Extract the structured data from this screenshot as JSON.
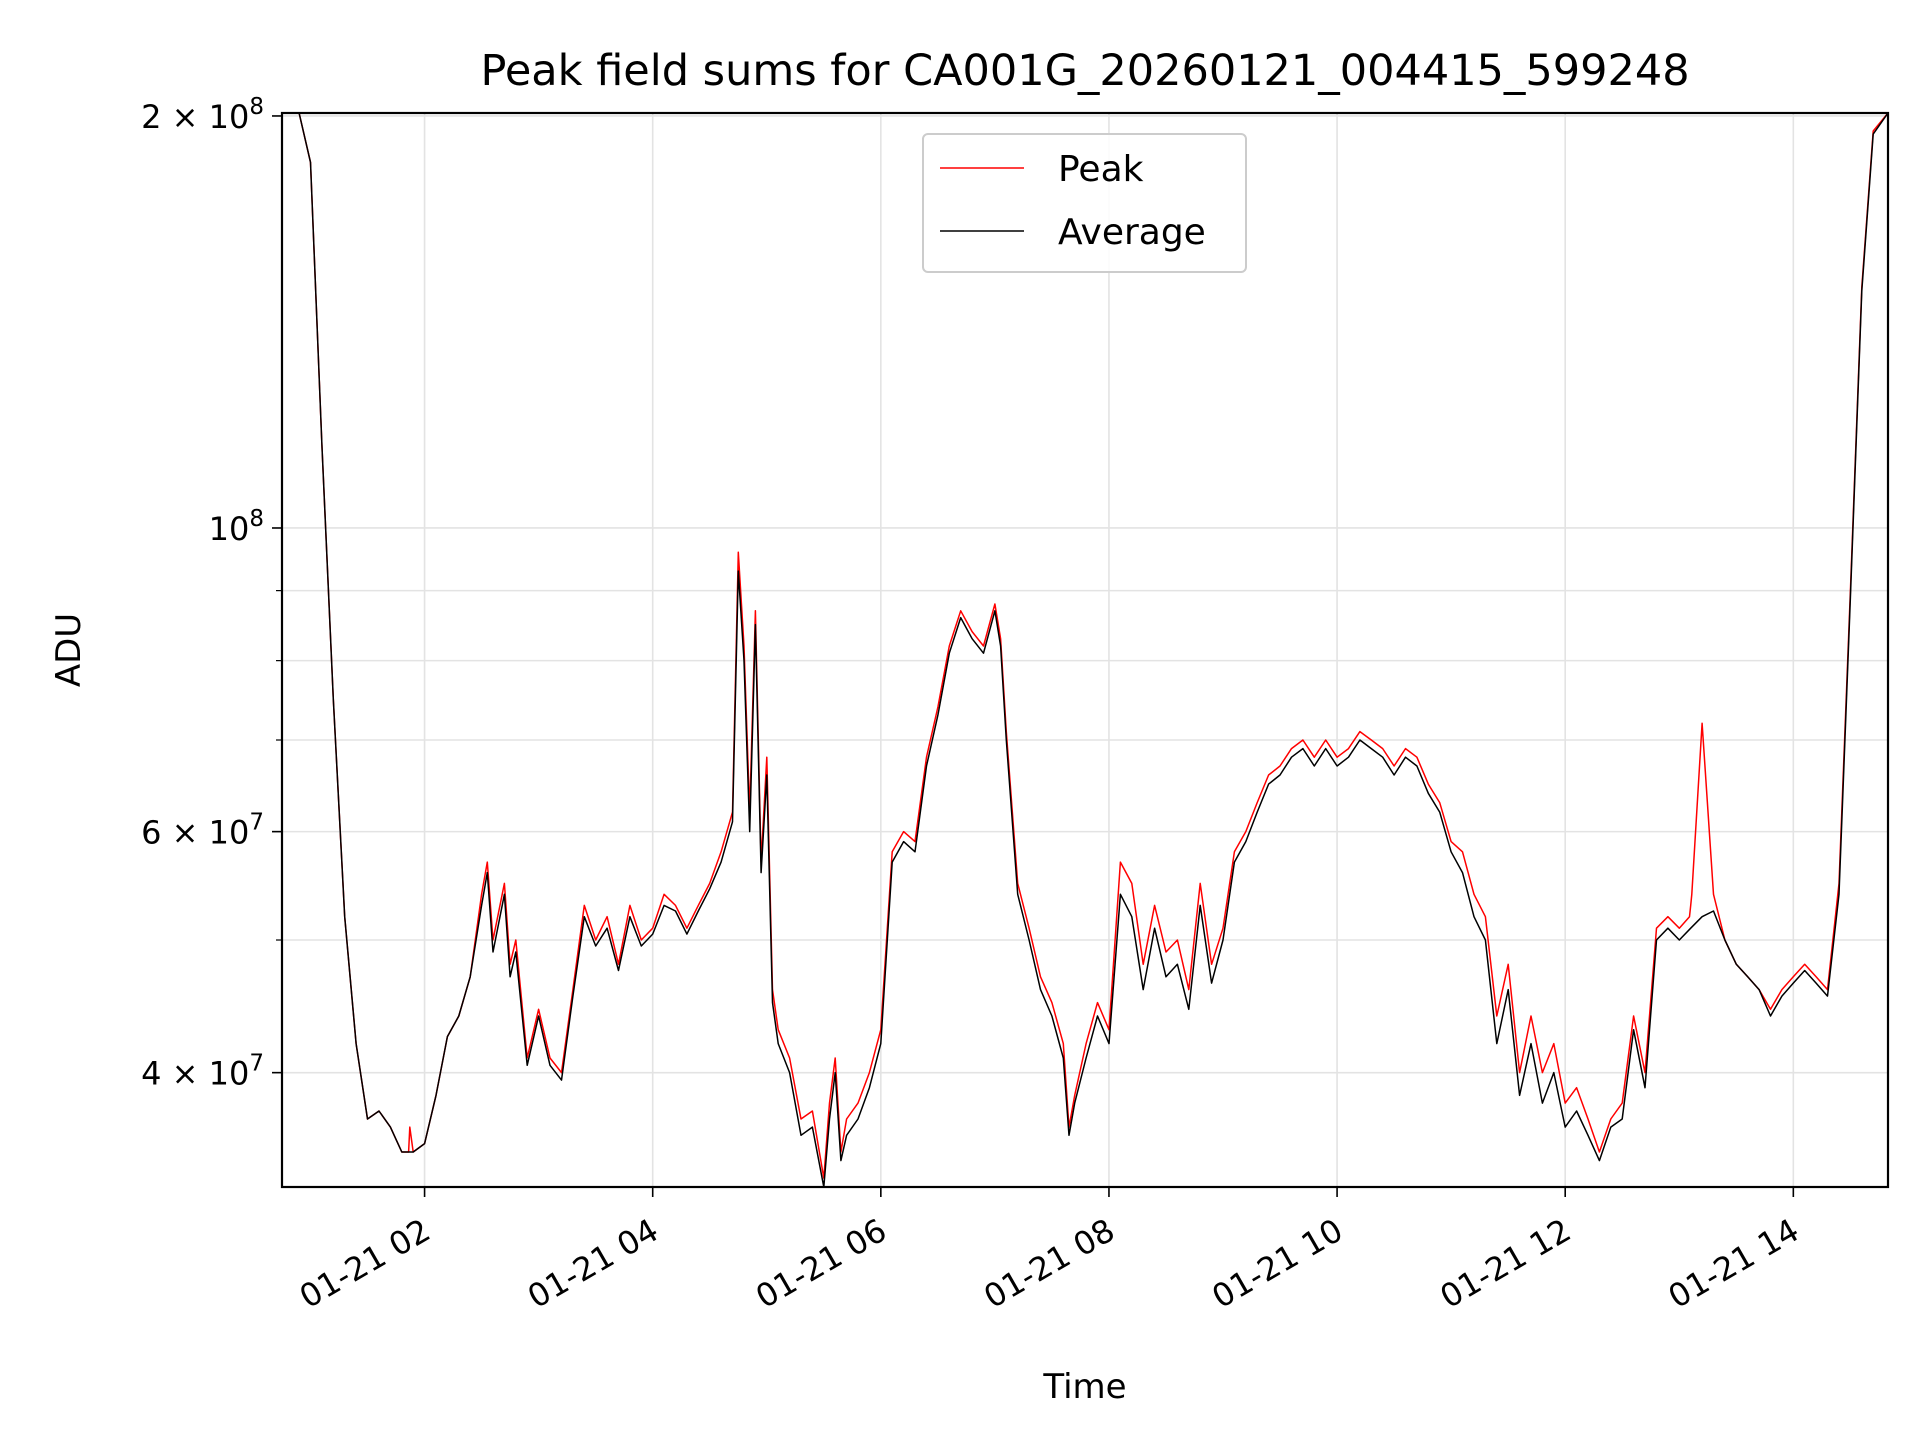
{
  "chart_data": {
    "type": "line",
    "title": "Peak field sums for CA001G_20260121_004415_599248",
    "xlabel": "Time",
    "ylabel": "ADU",
    "yscale": "log",
    "xlim_hours": [
      0.75,
      14.83
    ],
    "ylim": [
      33000000,
      201000000
    ],
    "grid": true,
    "legend_position": "upper-center",
    "x_ticks": [
      {
        "hour": 2,
        "label": "01-21 02"
      },
      {
        "hour": 4,
        "label": "01-21 04"
      },
      {
        "hour": 6,
        "label": "01-21 06"
      },
      {
        "hour": 8,
        "label": "01-21 08"
      },
      {
        "hour": 10,
        "label": "01-21 10"
      },
      {
        "hour": 12,
        "label": "01-21 12"
      },
      {
        "hour": 14,
        "label": "01-21 14"
      }
    ],
    "y_ticks": [
      {
        "value": 40000000,
        "base": "4 × 10",
        "exp": "7"
      },
      {
        "value": 60000000,
        "base": "6 × 10",
        "exp": "7"
      },
      {
        "value": 100000000,
        "base": "10",
        "exp": "8"
      },
      {
        "value": 200000000,
        "base": "2 × 10",
        "exp": "8"
      }
    ],
    "y_minor_ticks": [
      50000000,
      70000000,
      80000000,
      90000000
    ],
    "series": [
      {
        "name": "Peak",
        "color": "#ff0000",
        "x": [
          0.75,
          0.9,
          1.0,
          1.1,
          1.2,
          1.3,
          1.4,
          1.5,
          1.6,
          1.7,
          1.8,
          1.86,
          1.87,
          1.9,
          2.0,
          2.1,
          2.2,
          2.3,
          2.4,
          2.5,
          2.55,
          2.6,
          2.7,
          2.75,
          2.8,
          2.9,
          3.0,
          3.1,
          3.2,
          3.3,
          3.4,
          3.5,
          3.6,
          3.7,
          3.8,
          3.9,
          4.0,
          4.1,
          4.2,
          4.3,
          4.4,
          4.5,
          4.6,
          4.7,
          4.75,
          4.8,
          4.85,
          4.9,
          4.95,
          5.0,
          5.05,
          5.1,
          5.2,
          5.3,
          5.4,
          5.5,
          5.55,
          5.6,
          5.65,
          5.7,
          5.8,
          5.9,
          6.0,
          6.1,
          6.2,
          6.3,
          6.4,
          6.5,
          6.6,
          6.7,
          6.8,
          6.9,
          7.0,
          7.05,
          7.1,
          7.2,
          7.3,
          7.4,
          7.5,
          7.6,
          7.65,
          7.7,
          7.8,
          7.9,
          8.0,
          8.1,
          8.2,
          8.3,
          8.4,
          8.5,
          8.6,
          8.7,
          8.8,
          8.9,
          9.0,
          9.1,
          9.2,
          9.3,
          9.4,
          9.5,
          9.6,
          9.7,
          9.8,
          9.9,
          10.0,
          10.1,
          10.2,
          10.3,
          10.4,
          10.5,
          10.6,
          10.7,
          10.8,
          10.9,
          11.0,
          11.1,
          11.2,
          11.3,
          11.4,
          11.5,
          11.6,
          11.7,
          11.8,
          11.9,
          12.0,
          12.1,
          12.2,
          12.3,
          12.4,
          12.5,
          12.6,
          12.7,
          12.8,
          12.9,
          13.0,
          13.09,
          13.1,
          13.11,
          13.2,
          13.3,
          13.4,
          13.5,
          13.6,
          13.7,
          13.8,
          13.9,
          14.0,
          14.1,
          14.2,
          14.3,
          14.4,
          14.5,
          14.6,
          14.7,
          14.83
        ],
        "y": [
          201000000,
          201000000,
          185000000,
          115000000,
          75000000,
          52000000,
          42000000,
          37000000,
          37500000,
          36500000,
          35000000,
          35000000,
          36500000,
          35000000,
          35500000,
          38500000,
          42500000,
          44000000,
          47000000,
          54000000,
          57000000,
          50000000,
          55000000,
          48000000,
          50000000,
          41000000,
          44500000,
          41000000,
          40000000,
          46000000,
          53000000,
          50000000,
          52000000,
          48000000,
          53000000,
          50000000,
          51000000,
          54000000,
          53000000,
          51000000,
          53000000,
          55000000,
          58000000,
          62000000,
          96000000,
          82000000,
          62000000,
          87000000,
          57000000,
          68000000,
          46000000,
          43000000,
          41000000,
          37000000,
          37500000,
          33500000,
          38000000,
          41000000,
          35000000,
          37000000,
          38000000,
          40000000,
          43000000,
          58000000,
          60000000,
          59000000,
          68000000,
          74000000,
          82000000,
          87000000,
          84000000,
          82000000,
          88000000,
          83000000,
          71000000,
          55000000,
          51000000,
          47000000,
          45000000,
          42000000,
          36500000,
          38500000,
          42000000,
          45000000,
          43000000,
          57000000,
          55000000,
          48000000,
          53000000,
          49000000,
          50000000,
          46000000,
          55000000,
          48000000,
          51000000,
          58000000,
          60000000,
          63000000,
          66000000,
          67000000,
          69000000,
          70000000,
          68000000,
          70000000,
          68000000,
          69000000,
          71000000,
          70000000,
          69000000,
          67000000,
          69000000,
          68000000,
          65000000,
          63000000,
          59000000,
          58000000,
          54000000,
          52000000,
          44000000,
          48000000,
          40000000,
          44000000,
          40000000,
          42000000,
          38000000,
          39000000,
          37000000,
          35000000,
          37000000,
          38000000,
          44000000,
          40000000,
          51000000,
          52000000,
          51000000,
          52000000,
          53000000,
          54000000,
          72000000,
          54000000,
          50000000,
          48000000,
          47000000,
          46000000,
          44500000,
          46000000,
          47000000,
          48000000,
          47000000,
          46000000,
          55000000,
          90000000,
          150000000,
          195000000,
          201000000
        ]
      },
      {
        "name": "Average",
        "color": "#000000",
        "x": [
          0.75,
          0.9,
          1.0,
          1.1,
          1.2,
          1.3,
          1.4,
          1.5,
          1.6,
          1.7,
          1.8,
          1.9,
          2.0,
          2.1,
          2.2,
          2.3,
          2.4,
          2.5,
          2.55,
          2.6,
          2.7,
          2.75,
          2.8,
          2.9,
          3.0,
          3.1,
          3.2,
          3.3,
          3.4,
          3.5,
          3.6,
          3.7,
          3.8,
          3.9,
          4.0,
          4.1,
          4.2,
          4.3,
          4.4,
          4.5,
          4.6,
          4.7,
          4.75,
          4.8,
          4.85,
          4.9,
          4.95,
          5.0,
          5.05,
          5.1,
          5.2,
          5.3,
          5.4,
          5.5,
          5.55,
          5.6,
          5.65,
          5.7,
          5.8,
          5.9,
          6.0,
          6.1,
          6.2,
          6.3,
          6.4,
          6.5,
          6.6,
          6.7,
          6.8,
          6.9,
          7.0,
          7.05,
          7.1,
          7.2,
          7.3,
          7.4,
          7.5,
          7.6,
          7.65,
          7.7,
          7.8,
          7.9,
          8.0,
          8.1,
          8.2,
          8.3,
          8.4,
          8.5,
          8.6,
          8.7,
          8.8,
          8.9,
          9.0,
          9.1,
          9.2,
          9.3,
          9.4,
          9.5,
          9.6,
          9.7,
          9.8,
          9.9,
          10.0,
          10.1,
          10.2,
          10.3,
          10.4,
          10.5,
          10.6,
          10.7,
          10.8,
          10.9,
          11.0,
          11.1,
          11.2,
          11.3,
          11.4,
          11.5,
          11.6,
          11.7,
          11.8,
          11.9,
          12.0,
          12.1,
          12.2,
          12.3,
          12.4,
          12.5,
          12.6,
          12.7,
          12.8,
          12.9,
          13.0,
          13.1,
          13.2,
          13.3,
          13.4,
          13.5,
          13.6,
          13.7,
          13.8,
          13.9,
          14.0,
          14.1,
          14.2,
          14.3,
          14.4,
          14.5,
          14.6,
          14.7,
          14.83
        ],
        "y": [
          201000000,
          201000000,
          185000000,
          115000000,
          75000000,
          52000000,
          42000000,
          37000000,
          37500000,
          36500000,
          35000000,
          35000000,
          35500000,
          38500000,
          42500000,
          44000000,
          47000000,
          53000000,
          56000000,
          49000000,
          54000000,
          47000000,
          49000000,
          40500000,
          44000000,
          40500000,
          39500000,
          45500000,
          52000000,
          49500000,
          51000000,
          47500000,
          52000000,
          49500000,
          50500000,
          53000000,
          52500000,
          50500000,
          52500000,
          54500000,
          57000000,
          61000000,
          93000000,
          80000000,
          60000000,
          85000000,
          56000000,
          66000000,
          45000000,
          42000000,
          40000000,
          36000000,
          36500000,
          33000000,
          37000000,
          40000000,
          34500000,
          36000000,
          37000000,
          39000000,
          42000000,
          57000000,
          59000000,
          58000000,
          67000000,
          73000000,
          81000000,
          86000000,
          83000000,
          81000000,
          87000000,
          82000000,
          70000000,
          54000000,
          50000000,
          46000000,
          44000000,
          41000000,
          36000000,
          38000000,
          41000000,
          44000000,
          42000000,
          54000000,
          52000000,
          46000000,
          51000000,
          47000000,
          48000000,
          44500000,
          53000000,
          46500000,
          50000000,
          57000000,
          59000000,
          62000000,
          65000000,
          66000000,
          68000000,
          69000000,
          67000000,
          69000000,
          67000000,
          68000000,
          70000000,
          69000000,
          68000000,
          66000000,
          68000000,
          67000000,
          64000000,
          62000000,
          58000000,
          56000000,
          52000000,
          50000000,
          42000000,
          46000000,
          38500000,
          42000000,
          38000000,
          40000000,
          36500000,
          37500000,
          36000000,
          34500000,
          36500000,
          37000000,
          43000000,
          39000000,
          50000000,
          51000000,
          50000000,
          51000000,
          52000000,
          52500000,
          50000000,
          48000000,
          47000000,
          46000000,
          44000000,
          45500000,
          46500000,
          47500000,
          46500000,
          45500000,
          54000000,
          89000000,
          149000000,
          194000000,
          201000000
        ]
      }
    ]
  }
}
